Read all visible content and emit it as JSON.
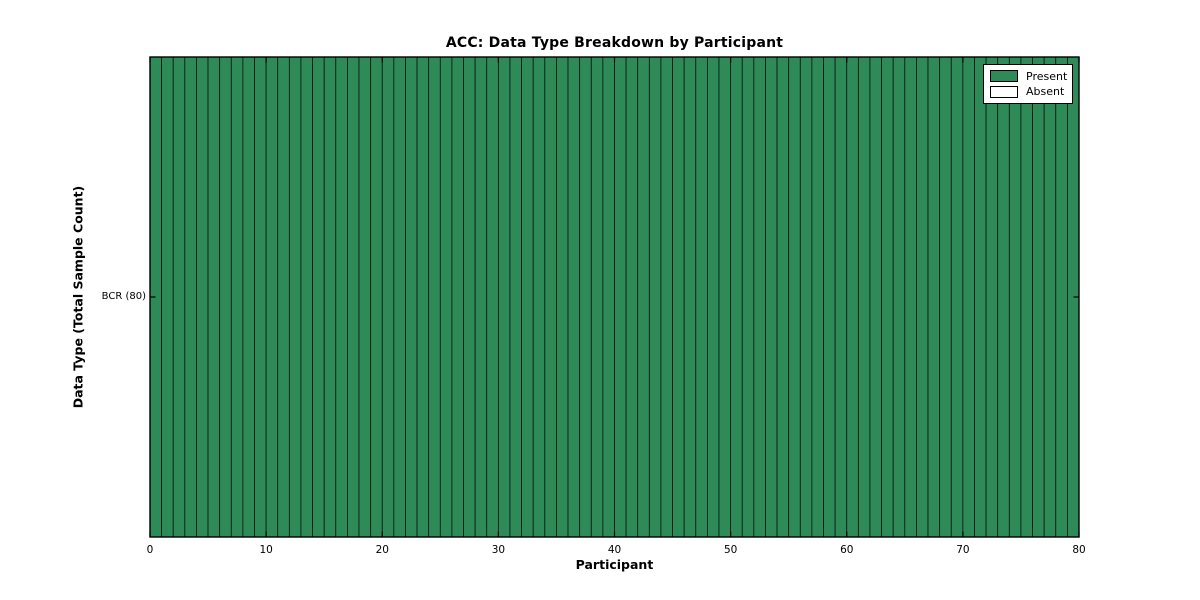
{
  "title": "ACC: Data Type Breakdown by Participant",
  "xlabel": "Participant",
  "ylabel": "Data Type (Total Sample Count)",
  "colors": {
    "present": "#2e8b57",
    "absent": "#ffffff",
    "cell_edge": "#000000",
    "axis": "#000000",
    "background": "#ffffff"
  },
  "legend": {
    "position": "upper right",
    "items": [
      {
        "label": "Present",
        "color": "#2e8b57"
      },
      {
        "label": "Absent",
        "color": "#ffffff"
      }
    ]
  },
  "chart_data": {
    "type": "heatmap",
    "title": "ACC: Data Type Breakdown by Participant",
    "xlabel": "Participant",
    "ylabel": "Data Type (Total Sample Count)",
    "rows": [
      "BCR (80)"
    ],
    "row_total_samples": [
      80
    ],
    "x_ticks": [
      0,
      10,
      20,
      30,
      40,
      50,
      60,
      70,
      80
    ],
    "x_range": [
      0,
      80
    ],
    "n_participants": 80,
    "grid": false,
    "legend_entries": [
      "Present",
      "Absent"
    ],
    "legend_position": "upper right",
    "values": [
      [
        1,
        1,
        1,
        1,
        1,
        1,
        1,
        1,
        1,
        1,
        1,
        1,
        1,
        1,
        1,
        1,
        1,
        1,
        1,
        1,
        1,
        1,
        1,
        1,
        1,
        1,
        1,
        1,
        1,
        1,
        1,
        1,
        1,
        1,
        1,
        1,
        1,
        1,
        1,
        1,
        1,
        1,
        1,
        1,
        1,
        1,
        1,
        1,
        1,
        1,
        1,
        1,
        1,
        1,
        1,
        1,
        1,
        1,
        1,
        1,
        1,
        1,
        1,
        1,
        1,
        1,
        1,
        1,
        1,
        1,
        1,
        1,
        1,
        1,
        1,
        1,
        1,
        1,
        1,
        1
      ]
    ]
  }
}
